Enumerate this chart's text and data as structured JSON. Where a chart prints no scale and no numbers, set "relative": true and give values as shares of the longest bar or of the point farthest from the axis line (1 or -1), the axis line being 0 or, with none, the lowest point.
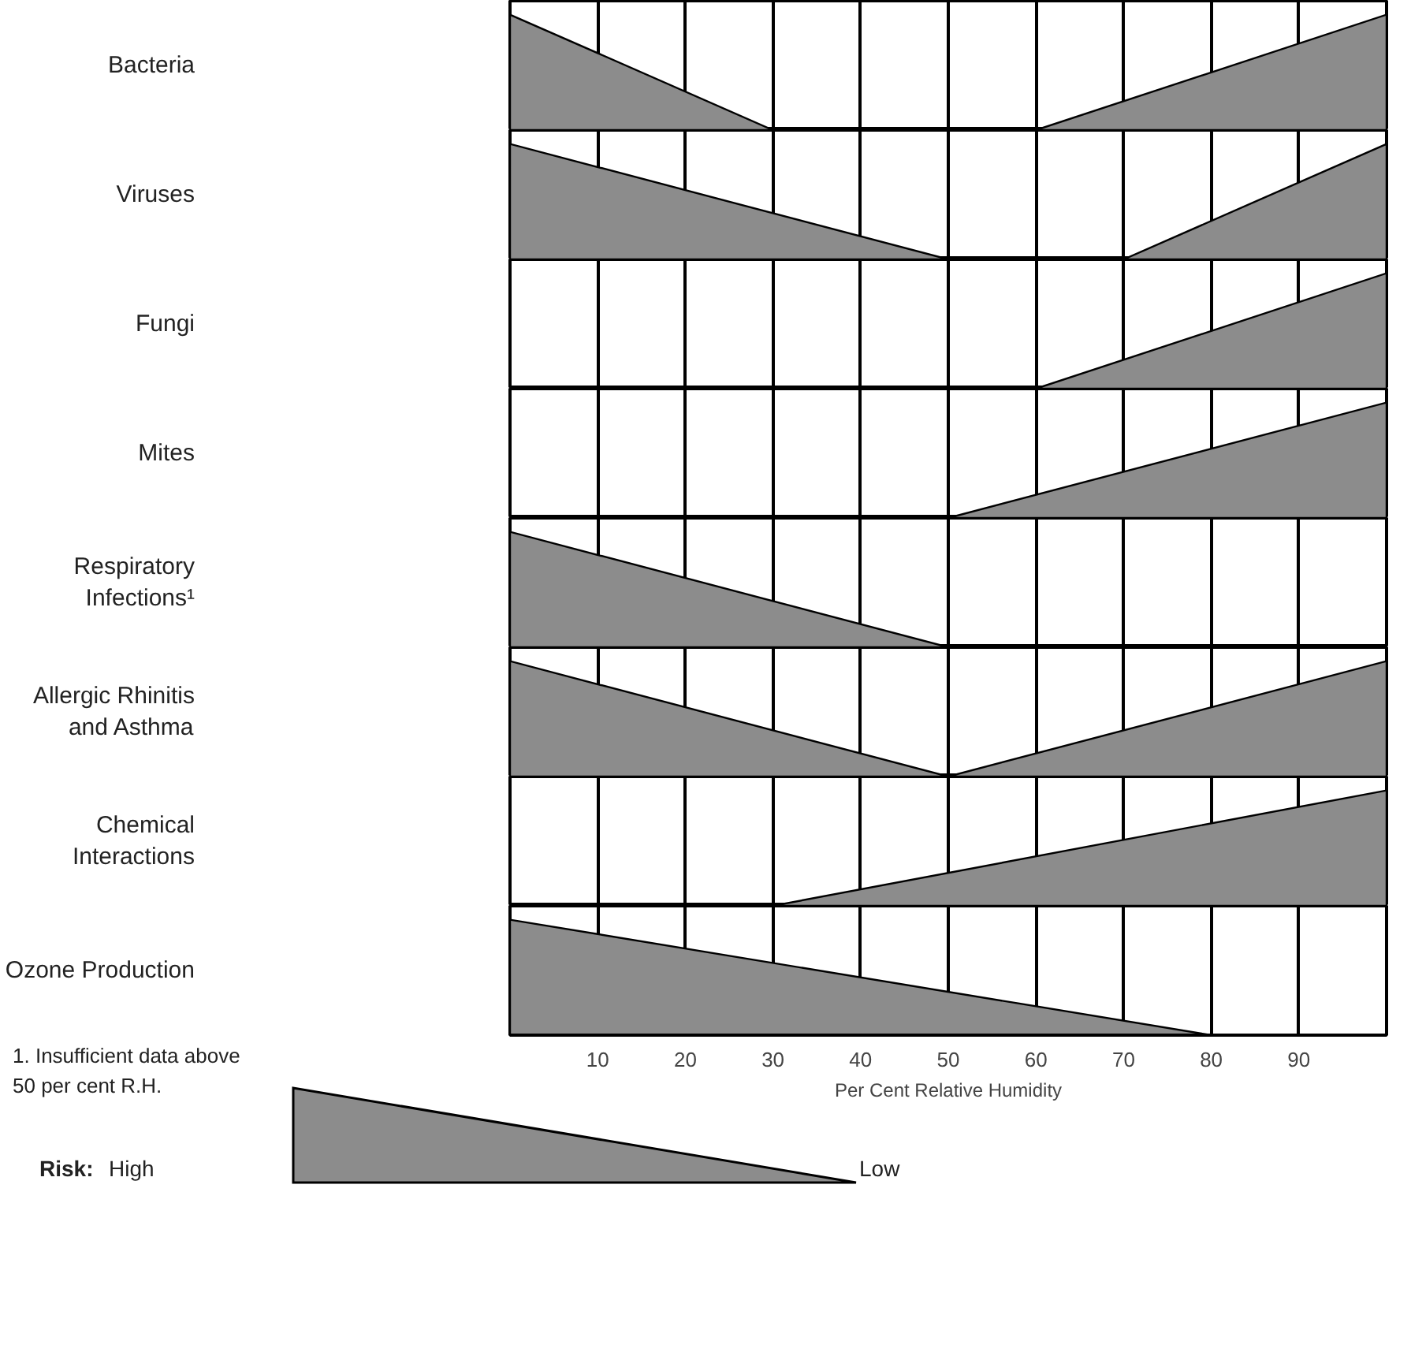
{
  "chart_data": [
    {
      "type": "area",
      "ylabel": "Bacteria",
      "relative": true,
      "xlim": [
        0,
        100
      ],
      "grid": "x",
      "tick_labels": false,
      "xticks": [
        0,
        10,
        20,
        30,
        40,
        50,
        60,
        70,
        80,
        90,
        100
      ],
      "series": [
        {
          "color": "#8c8c8c",
          "x": [
            0,
            30,
            60,
            100
          ],
          "values": [
            1,
            0,
            0,
            1
          ]
        }
      ]
    },
    {
      "type": "area",
      "ylabel": "Viruses",
      "relative": true,
      "xlim": [
        0,
        100
      ],
      "grid": "x",
      "tick_labels": false,
      "xticks": [
        0,
        10,
        20,
        30,
        40,
        50,
        60,
        70,
        80,
        90,
        100
      ],
      "series": [
        {
          "color": "#8c8c8c",
          "x": [
            0,
            50,
            70,
            100
          ],
          "values": [
            1,
            0,
            0,
            1
          ]
        }
      ]
    },
    {
      "type": "area",
      "ylabel": "Fungi",
      "relative": true,
      "xlim": [
        0,
        100
      ],
      "grid": "x",
      "tick_labels": false,
      "xticks": [
        0,
        10,
        20,
        30,
        40,
        50,
        60,
        70,
        80,
        90,
        100
      ],
      "series": [
        {
          "color": "#8c8c8c",
          "x": [
            0,
            60,
            100
          ],
          "values": [
            0,
            0,
            1
          ]
        }
      ]
    },
    {
      "type": "area",
      "ylabel": "Mites",
      "relative": true,
      "xlim": [
        0,
        100
      ],
      "grid": "x",
      "tick_labels": false,
      "xticks": [
        0,
        10,
        20,
        30,
        40,
        50,
        60,
        70,
        80,
        90,
        100
      ],
      "series": [
        {
          "color": "#8c8c8c",
          "x": [
            0,
            50,
            100
          ],
          "values": [
            0,
            0,
            1
          ]
        }
      ]
    },
    {
      "type": "area",
      "ylabel": "Respiratory Infections¹",
      "relative": true,
      "xlim": [
        0,
        100
      ],
      "grid": "x",
      "tick_labels": false,
      "xticks": [
        0,
        10,
        20,
        30,
        40,
        50,
        60,
        70,
        80,
        90,
        100
      ],
      "series": [
        {
          "color": "#8c8c8c",
          "x": [
            0,
            50
          ],
          "values": [
            1,
            0
          ]
        }
      ]
    },
    {
      "type": "area",
      "ylabel": "Allergic Rhinitis and Asthma",
      "relative": true,
      "xlim": [
        0,
        100
      ],
      "grid": "x",
      "tick_labels": false,
      "xticks": [
        0,
        10,
        20,
        30,
        40,
        50,
        60,
        70,
        80,
        90,
        100
      ],
      "series": [
        {
          "color": "#8c8c8c",
          "x": [
            0,
            50,
            100
          ],
          "values": [
            1,
            0,
            1
          ]
        }
      ]
    },
    {
      "type": "area",
      "ylabel": "Chemical Interactions",
      "relative": true,
      "xlim": [
        0,
        100
      ],
      "grid": "x",
      "tick_labels": false,
      "xticks": [
        0,
        10,
        20,
        30,
        40,
        50,
        60,
        70,
        80,
        90,
        100
      ],
      "series": [
        {
          "color": "#8c8c8c",
          "x": [
            0,
            30,
            100
          ],
          "values": [
            0,
            0,
            1
          ]
        }
      ]
    },
    {
      "type": "area",
      "ylabel": "Ozone Production",
      "relative": true,
      "xlim": [
        0,
        100
      ],
      "grid": "x",
      "tick_labels": "x",
      "xlabel": "Per Cent Relative Humidity",
      "xticks": [
        {
          "value": 0,
          "label": null
        },
        10,
        20,
        30,
        40,
        50,
        60,
        70,
        80,
        90,
        {
          "value": 100,
          "label": null
        }
      ],
      "annotations": [
        "1. Insufficient data above 50 per cent R.H."
      ],
      "series": [
        {
          "color": "#8c8c8c",
          "x": [
            0,
            80,
            100
          ],
          "values": [
            1,
            0,
            0
          ]
        }
      ]
    },
    {
      "type": "other",
      "annotations": [
        "Risk:",
        "High",
        "Low"
      ]
    }
  ]
}
